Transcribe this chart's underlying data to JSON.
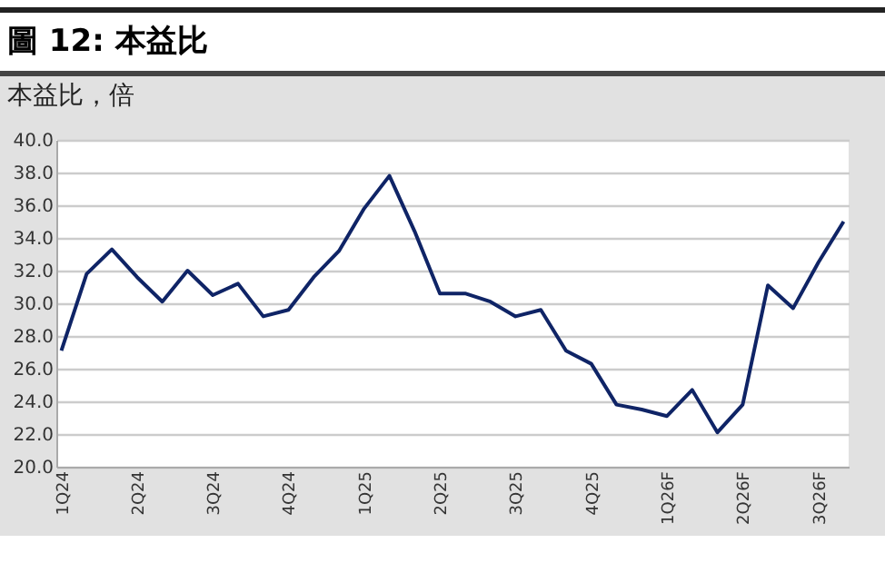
{
  "chart_data": {
    "type": "line",
    "title": "圖 12: 本益比",
    "subtitle": "本益比，倍",
    "categories": [
      "1Q24",
      null,
      null,
      "2Q24",
      null,
      null,
      "3Q24",
      null,
      null,
      "4Q24",
      null,
      null,
      "1Q25",
      null,
      null,
      "2Q25",
      null,
      null,
      "3Q25",
      null,
      null,
      "4Q25",
      null,
      null,
      "1Q26F",
      null,
      null,
      "2Q26F",
      null,
      null,
      "3Q26F",
      null
    ],
    "series": [
      {
        "color": "#0f2466",
        "values": [
          27.1,
          31.8,
          33.3,
          31.6,
          30.1,
          32.0,
          30.5,
          31.2,
          29.2,
          29.6,
          31.6,
          33.2,
          35.8,
          37.8,
          34.4,
          30.6,
          30.6,
          30.1,
          29.2,
          29.6,
          27.1,
          26.3,
          23.8,
          23.5,
          23.1,
          24.7,
          22.1,
          23.8,
          31.1,
          29.7,
          32.5,
          35.0
        ]
      }
    ],
    "ylim": [
      20,
      40
    ],
    "yticks": [
      {
        "value": 20,
        "label": "20.0"
      },
      {
        "value": 22,
        "label": "22.0"
      },
      {
        "value": 24,
        "label": "24.0"
      },
      {
        "value": 26,
        "label": "26.0"
      },
      {
        "value": 28,
        "label": "28.0"
      },
      {
        "value": 30,
        "label": "30.0"
      },
      {
        "value": 32,
        "label": "32.0"
      },
      {
        "value": 34,
        "label": "34.0"
      },
      {
        "value": 36,
        "label": "36.0"
      },
      {
        "value": 38,
        "label": "38.0"
      },
      {
        "value": 40,
        "label": "40.0"
      }
    ],
    "grid": "y",
    "legend": false,
    "marker": "none",
    "line_style": "solid"
  }
}
